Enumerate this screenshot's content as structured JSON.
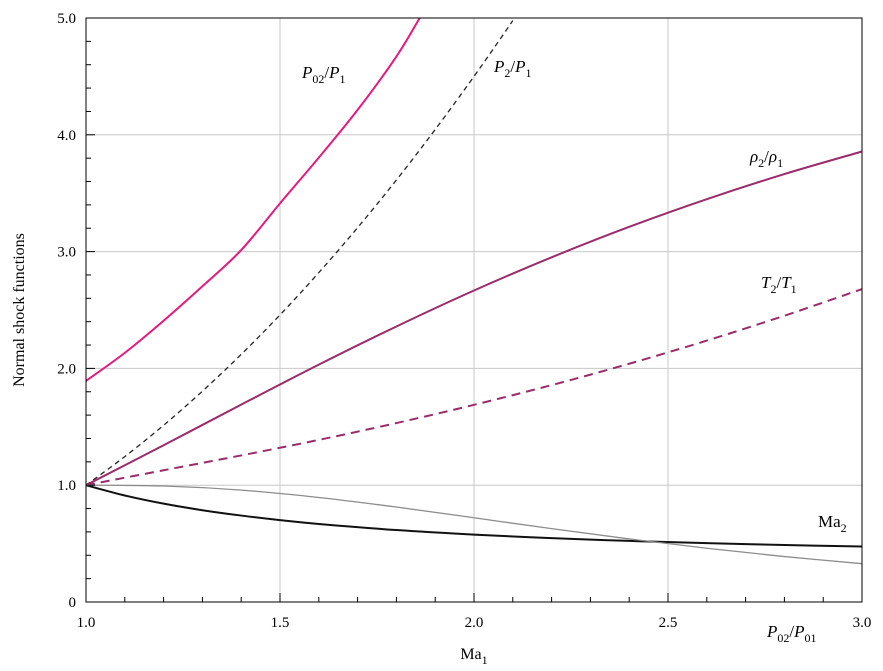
{
  "chart_data": {
    "type": "line",
    "title": "",
    "xlabel": "Ma",
    "xlabel_sub": "1",
    "ylabel": "Normal shock functions",
    "xlim": [
      1.0,
      3.0
    ],
    "ylim": [
      0,
      5.0
    ],
    "x_ticks": [
      "1.0",
      "1.5",
      "2.0",
      "2.5",
      "3.0"
    ],
    "y_ticks": [
      "0",
      "1.0",
      "2.0",
      "3.0",
      "4.0",
      "5.0"
    ],
    "grid": true,
    "legend": "none",
    "series": [
      {
        "id": "p02_p1",
        "label_parts": [
          [
            "P",
            "it"
          ],
          [
            "02",
            "sub"
          ],
          [
            "/",
            ""
          ],
          [
            "P",
            "it"
          ],
          [
            "1",
            "sub"
          ]
        ],
        "color": "#e6197f",
        "dash": "",
        "width": 2,
        "x": [
          1.0,
          1.1,
          1.2,
          1.3,
          1.4,
          1.5,
          1.6,
          1.7,
          1.8,
          1.86
        ],
        "y": [
          1.893,
          2.133,
          2.408,
          2.703,
          3.013,
          3.413,
          3.805,
          4.213,
          4.67,
          5.0
        ]
      },
      {
        "id": "p2_p1",
        "label_parts": [
          [
            "P",
            "it"
          ],
          [
            "2",
            "sub"
          ],
          [
            "/",
            ""
          ],
          [
            "P",
            "it"
          ],
          [
            "1",
            "sub"
          ]
        ],
        "color": "#222222",
        "dash": "5,4",
        "width": 1.3,
        "x": [
          1.0,
          1.1,
          1.2,
          1.3,
          1.4,
          1.5,
          1.6,
          1.7,
          1.8,
          1.9,
          2.0,
          2.07,
          2.1
        ],
        "y": [
          1.0,
          1.245,
          1.513,
          1.805,
          2.12,
          2.458,
          2.82,
          3.205,
          3.613,
          4.045,
          4.5,
          4.832,
          4.978
        ]
      },
      {
        "id": "rho2_rho1",
        "label_parts": [
          [
            "ρ",
            "it"
          ],
          [
            "2",
            "sub"
          ],
          [
            "/",
            ""
          ],
          [
            "ρ",
            "it"
          ],
          [
            "1",
            "sub"
          ]
        ],
        "color": "#9b2b6a",
        "dash": "",
        "width": 2,
        "x": [
          1.0,
          1.2,
          1.4,
          1.6,
          1.8,
          2.0,
          2.2,
          2.4,
          2.6,
          2.8,
          3.0
        ],
        "y": [
          1.0,
          1.342,
          1.69,
          2.032,
          2.359,
          2.667,
          2.951,
          3.212,
          3.449,
          3.664,
          3.857
        ]
      },
      {
        "id": "t2_t1",
        "label_parts": [
          [
            "T",
            "it"
          ],
          [
            "2",
            "sub"
          ],
          [
            "/",
            ""
          ],
          [
            "T",
            "it"
          ],
          [
            "1",
            "sub"
          ]
        ],
        "color": "#9b2b6a",
        "dash": "9,6",
        "width": 2,
        "x": [
          1.0,
          1.2,
          1.4,
          1.6,
          1.8,
          2.0,
          2.2,
          2.4,
          2.6,
          2.8,
          3.0
        ],
        "y": [
          1.0,
          1.128,
          1.255,
          1.388,
          1.532,
          1.688,
          1.857,
          2.04,
          2.238,
          2.451,
          2.679
        ]
      },
      {
        "id": "ma2",
        "label_parts": [
          [
            "Ma",
            ""
          ],
          [
            "2",
            "sub"
          ]
        ],
        "color": "#111111",
        "dash": "",
        "width": 2,
        "x": [
          1.0,
          1.1,
          1.2,
          1.3,
          1.4,
          1.5,
          1.6,
          1.8,
          2.0,
          2.2,
          2.4,
          2.6,
          2.8,
          3.0
        ],
        "y": [
          1.0,
          0.912,
          0.842,
          0.786,
          0.74,
          0.701,
          0.668,
          0.616,
          0.577,
          0.547,
          0.523,
          0.504,
          0.488,
          0.475
        ]
      },
      {
        "id": "p02_p01",
        "label_parts": [
          [
            "P",
            "it"
          ],
          [
            "02",
            "sub"
          ],
          [
            "/",
            ""
          ],
          [
            "P",
            "it"
          ],
          [
            "01",
            "sub"
          ]
        ],
        "color": "#8c8c8c",
        "dash": "",
        "width": 1.3,
        "x": [
          1.0,
          1.2,
          1.4,
          1.6,
          1.8,
          2.0,
          2.2,
          2.4,
          2.6,
          2.8,
          3.0
        ],
        "y": [
          1.0,
          0.993,
          0.958,
          0.895,
          0.813,
          0.721,
          0.628,
          0.54,
          0.46,
          0.389,
          0.328
        ]
      }
    ]
  }
}
